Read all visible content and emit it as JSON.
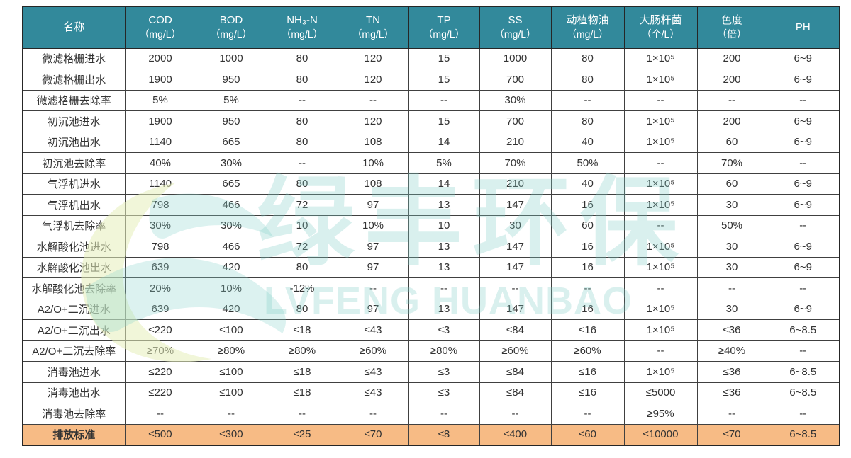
{
  "watermark": {
    "cn": "绿丰环保",
    "en": "LVFENG HUANBAO"
  },
  "colors": {
    "header_bg": "#32899B",
    "highlight_bg": "#F7BB85",
    "border": "#404040",
    "watermark_text": "rgba(130, 205, 200, 0.30)",
    "logo_yellow": "rgba(230, 238, 185, 0.55)",
    "logo_teal": "rgba(140, 212, 206, 0.30)"
  },
  "table": {
    "columns": [
      {
        "label": "名称",
        "unit": ""
      },
      {
        "label": "COD",
        "unit": "（mg/L）"
      },
      {
        "label": "BOD",
        "unit": "（mg/L）"
      },
      {
        "label": "NH₃-N",
        "unit": "（mg/L）"
      },
      {
        "label": "TN",
        "unit": "（mg/L）"
      },
      {
        "label": "TP",
        "unit": "（mg/L）"
      },
      {
        "label": "SS",
        "unit": "（mg/L）"
      },
      {
        "label": "动植物油",
        "unit": "（mg/L）"
      },
      {
        "label": "大肠杆菌",
        "unit": "（个/L）"
      },
      {
        "label": "色度",
        "unit": "（倍）"
      },
      {
        "label": "PH",
        "unit": ""
      }
    ],
    "rows": [
      {
        "label": "微滤格栅进水",
        "highlight": false,
        "values": [
          "2000",
          "1000",
          "80",
          "120",
          "15",
          "1000",
          "80",
          "1×10⁵",
          "200",
          "6~9"
        ]
      },
      {
        "label": "微滤格栅出水",
        "highlight": false,
        "values": [
          "1900",
          "950",
          "80",
          "120",
          "15",
          "700",
          "80",
          "1×10⁵",
          "200",
          "6~9"
        ]
      },
      {
        "label": "微滤格栅去除率",
        "highlight": false,
        "values": [
          "5%",
          "5%",
          "--",
          "--",
          "--",
          "30%",
          "--",
          "--",
          "--",
          "--"
        ]
      },
      {
        "label": "初沉池进水",
        "highlight": false,
        "values": [
          "1900",
          "950",
          "80",
          "120",
          "15",
          "700",
          "80",
          "1×10⁵",
          "200",
          "6~9"
        ]
      },
      {
        "label": "初沉池出水",
        "highlight": false,
        "values": [
          "1140",
          "665",
          "80",
          "108",
          "14",
          "210",
          "40",
          "1×10⁵",
          "60",
          "6~9"
        ]
      },
      {
        "label": "初沉池去除率",
        "highlight": false,
        "values": [
          "40%",
          "30%",
          "--",
          "10%",
          "5%",
          "70%",
          "50%",
          "--",
          "70%",
          "--"
        ]
      },
      {
        "label": "气浮机进水",
        "highlight": false,
        "values": [
          "1140",
          "665",
          "80",
          "108",
          "14",
          "210",
          "40",
          "1×10⁵",
          "60",
          "6~9"
        ]
      },
      {
        "label": "气浮机出水",
        "highlight": false,
        "values": [
          "798",
          "466",
          "72",
          "97",
          "13",
          "147",
          "16",
          "1×10⁵",
          "30",
          "6~9"
        ]
      },
      {
        "label": "气浮机去除率",
        "highlight": false,
        "values": [
          "30%",
          "30%",
          "10",
          "10%",
          "10",
          "30",
          "60",
          "--",
          "50%",
          "--"
        ]
      },
      {
        "label": "水解酸化池进水",
        "highlight": false,
        "values": [
          "798",
          "466",
          "72",
          "97",
          "13",
          "147",
          "16",
          "1×10⁵",
          "30",
          "6~9"
        ]
      },
      {
        "label": "水解酸化池出水",
        "highlight": false,
        "values": [
          "639",
          "420",
          "80",
          "97",
          "13",
          "147",
          "16",
          "1×10⁵",
          "30",
          "6~9"
        ]
      },
      {
        "label": "水解酸化池去除率",
        "highlight": false,
        "values": [
          "20%",
          "10%",
          "-12%",
          "--",
          "--",
          "--",
          "--",
          "--",
          "--",
          "--"
        ]
      },
      {
        "label": "A2/O+二沉进水",
        "highlight": false,
        "values": [
          "639",
          "420",
          "80",
          "97",
          "13",
          "147",
          "16",
          "1×10⁵",
          "30",
          "6~9"
        ]
      },
      {
        "label": "A2/O+二沉出水",
        "highlight": false,
        "values": [
          "≤220",
          "≤100",
          "≤18",
          "≤43",
          "≤3",
          "≤84",
          "≤16",
          "1×10⁵",
          "≤36",
          "6~8.5"
        ]
      },
      {
        "label": "A2/O+二沉去除率",
        "highlight": false,
        "values": [
          "≥70%",
          "≥80%",
          "≥80%",
          "≥60%",
          "≥80%",
          "≥60%",
          "≥60%",
          "--",
          "≥40%",
          "--"
        ]
      },
      {
        "label": "消毒池进水",
        "highlight": false,
        "values": [
          "≤220",
          "≤100",
          "≤18",
          "≤43",
          "≤3",
          "≤84",
          "≤16",
          "1×10⁵",
          "≤36",
          "6~8.5"
        ]
      },
      {
        "label": "消毒池出水",
        "highlight": false,
        "values": [
          "≤220",
          "≤100",
          "≤18",
          "≤43",
          "≤3",
          "≤84",
          "≤16",
          "≤5000",
          "≤36",
          "6~8.5"
        ]
      },
      {
        "label": "消毒池去除率",
        "highlight": false,
        "values": [
          "--",
          "--",
          "--",
          "--",
          "--",
          "--",
          "--",
          "≥95%",
          "--",
          "--"
        ]
      },
      {
        "label": "排放标准",
        "highlight": true,
        "values": [
          "≤500",
          "≤300",
          "≤25",
          "≤70",
          "≤8",
          "≤400",
          "≤60",
          "≤10000",
          "≤70",
          "6~8.5"
        ]
      }
    ]
  }
}
